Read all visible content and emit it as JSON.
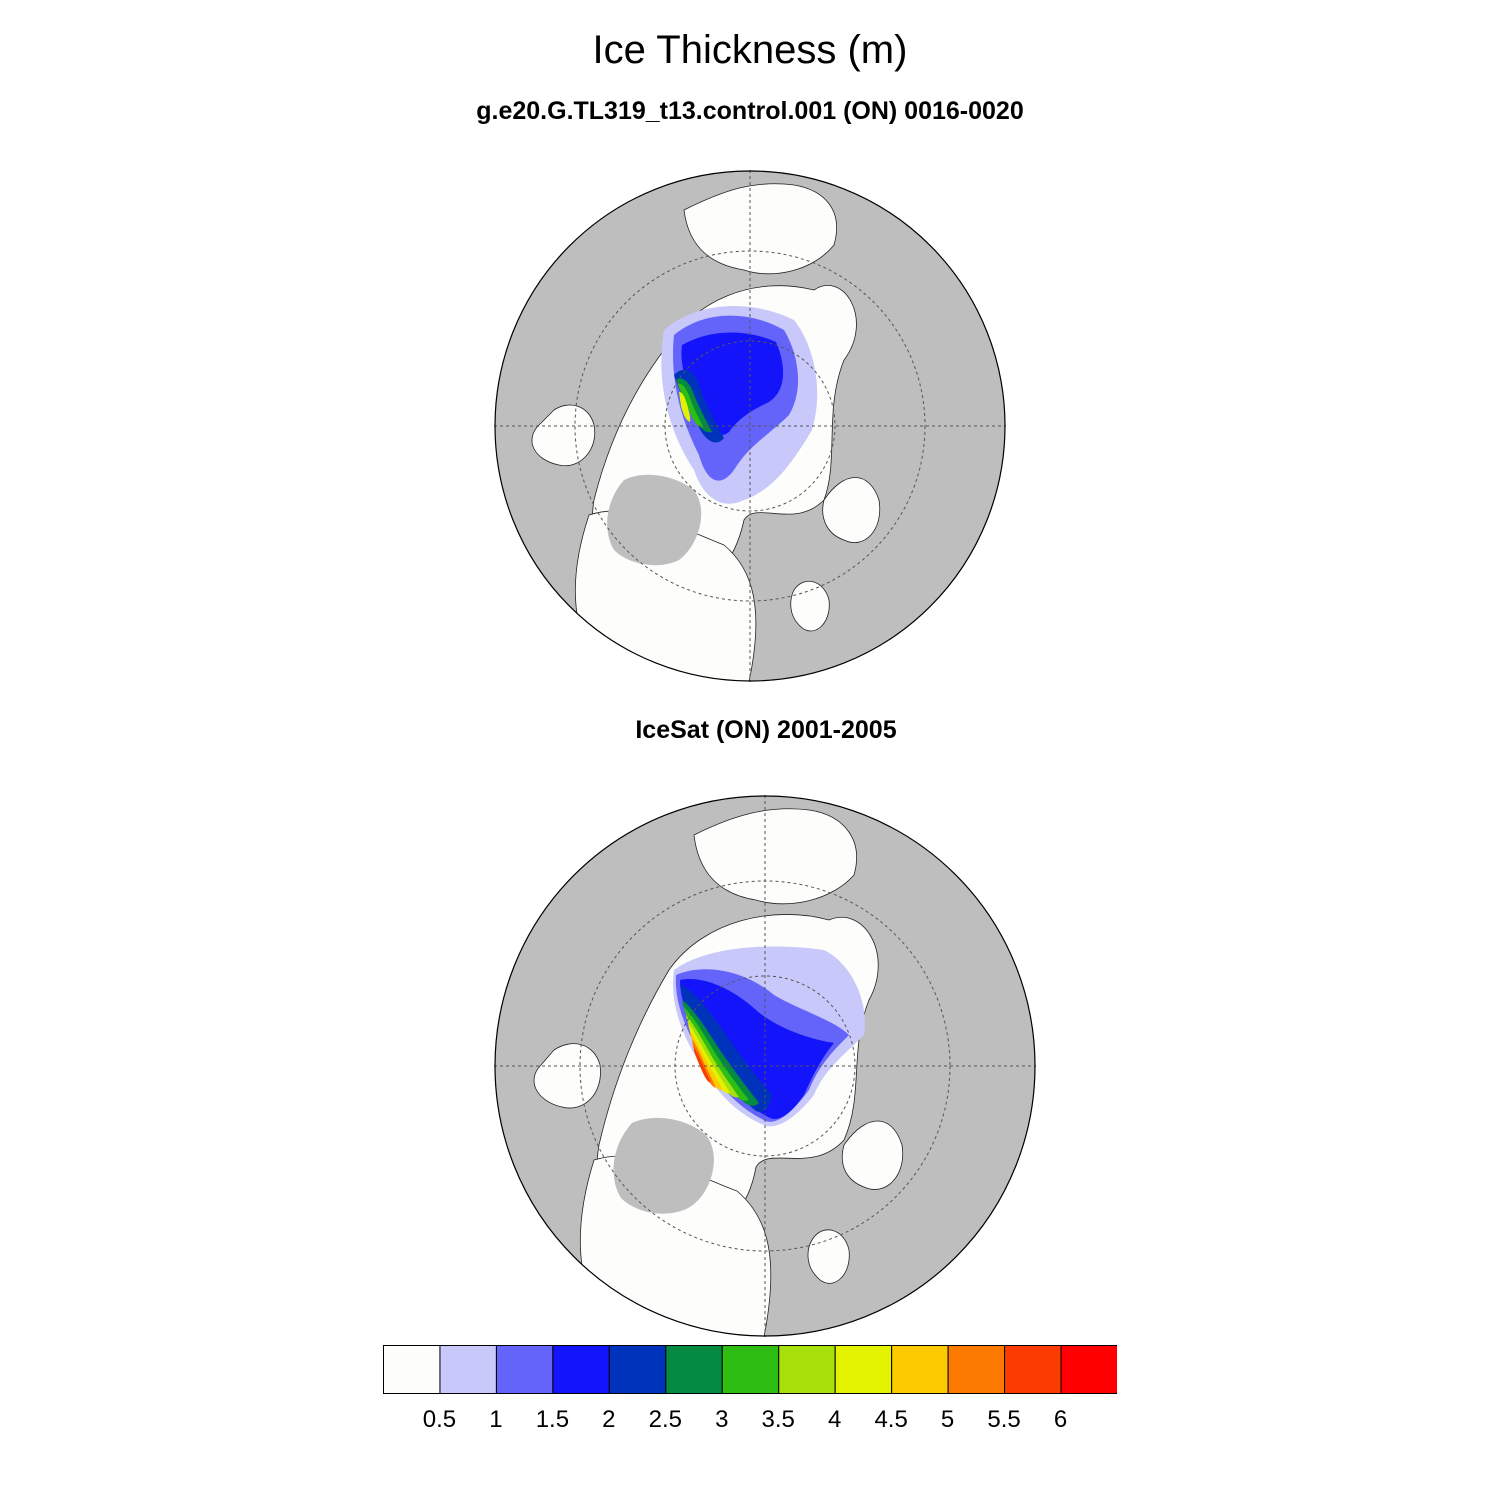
{
  "title": "Ice Thickness (m)",
  "panels": [
    {
      "title": "g.e20.G.TL319_t13.control.001 (ON) 0016-0020"
    },
    {
      "title": "IceSat (ON) 2001-2005"
    }
  ],
  "colors": {
    "land": "#bebebe",
    "ocean": "#fdfdfb",
    "coast": "#222222",
    "grid": "#555555"
  },
  "colorbar": {
    "labels": [
      "0.5",
      "1",
      "1.5",
      "2",
      "2.5",
      "3",
      "3.5",
      "4",
      "4.5",
      "5",
      "5.5",
      "6"
    ],
    "colors": [
      "#fdfdfb",
      "#c8c8fa",
      "#6464fa",
      "#1414fa",
      "#0033bb",
      "#058a41",
      "#2ebd13",
      "#a7e00a",
      "#e2f200",
      "#fdc900",
      "#fd7a00",
      "#fa3c00",
      "#ff0000"
    ]
  },
  "chart_data": {
    "type": "heatmap",
    "projection": "north polar stereographic",
    "title": "Ice Thickness (m)",
    "units": "m",
    "levels": [
      0.5,
      1,
      1.5,
      2,
      2.5,
      3,
      3.5,
      4,
      4.5,
      5,
      5.5,
      6
    ],
    "panels": [
      {
        "title": "g.e20.G.TL319_t13.control.001 (ON) 0016-0020",
        "summary": "thickness mostly 1.5-2.5 m in the central Arctic, thicker (3-4.5 m) north of the Canadian Archipelago"
      },
      {
        "title": "IceSat (ON) 2001-2005",
        "summary": "thickness up to 5.5-6 m along the Canadian Archipelago and northern Greenland, decreasing toward the Siberian side"
      }
    ]
  }
}
